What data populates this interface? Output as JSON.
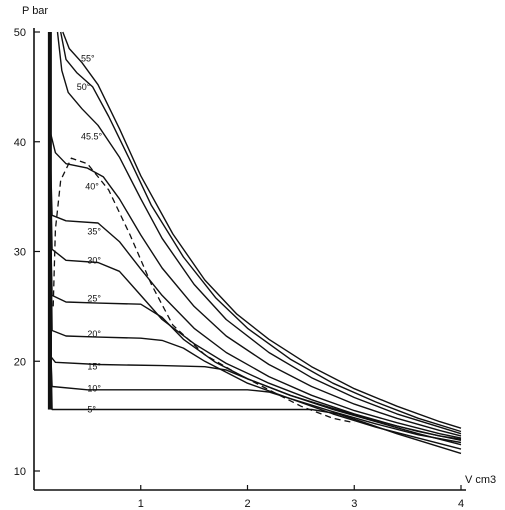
{
  "chart_data": {
    "type": "line",
    "xlabel": "V cm3",
    "ylabel": "P bar",
    "xlim": [
      0,
      4
    ],
    "ylim": [
      10,
      50
    ],
    "x_ticks": [
      "1",
      "2",
      "3",
      "4"
    ],
    "y_ticks": [
      "10",
      "20",
      "30",
      "40",
      "50"
    ],
    "series": [
      {
        "name": "5°",
        "label": "5°",
        "label_at": [
          0.5,
          15.6
        ],
        "points": [
          [
            0.14,
            50
          ],
          [
            0.15,
            40
          ],
          [
            0.16,
            30
          ],
          [
            0.16,
            20
          ],
          [
            0.17,
            15.6
          ],
          [
            0.5,
            15.6
          ],
          [
            1.2,
            15.6
          ],
          [
            2.0,
            15.6
          ],
          [
            2.6,
            15.6
          ],
          [
            2.85,
            15.2
          ],
          [
            3.1,
            14.4
          ],
          [
            3.4,
            13.4
          ],
          [
            3.7,
            12.5
          ],
          [
            4.0,
            11.6
          ]
        ]
      },
      {
        "name": "10°",
        "label": "10°",
        "label_at": [
          0.5,
          17.5
        ],
        "points": [
          [
            0.14,
            50
          ],
          [
            0.15,
            40
          ],
          [
            0.16,
            30
          ],
          [
            0.16,
            20
          ],
          [
            0.17,
            17.7
          ],
          [
            0.5,
            17.4
          ],
          [
            1.2,
            17.4
          ],
          [
            2.0,
            17.4
          ],
          [
            2.2,
            17.2
          ],
          [
            2.4,
            16.6
          ],
          [
            2.8,
            15.2
          ],
          [
            3.2,
            14.0
          ],
          [
            3.6,
            13.0
          ],
          [
            4.0,
            12.0
          ]
        ]
      },
      {
        "name": "15°",
        "label": "15°",
        "label_at": [
          0.5,
          19.5
        ],
        "points": [
          [
            0.14,
            50
          ],
          [
            0.15,
            40
          ],
          [
            0.16,
            30
          ],
          [
            0.16,
            20.4
          ],
          [
            0.2,
            19.9
          ],
          [
            0.6,
            19.7
          ],
          [
            1.2,
            19.6
          ],
          [
            1.6,
            19.5
          ],
          [
            1.8,
            19.2
          ],
          [
            2.0,
            18.4
          ],
          [
            2.4,
            16.9
          ],
          [
            2.8,
            15.6
          ],
          [
            3.2,
            14.5
          ],
          [
            3.6,
            13.4
          ],
          [
            4.0,
            12.4
          ]
        ]
      },
      {
        "name": "20°",
        "label": "20°",
        "label_at": [
          0.5,
          22.5
        ],
        "points": [
          [
            0.14,
            50
          ],
          [
            0.15,
            40
          ],
          [
            0.16,
            30
          ],
          [
            0.17,
            22.8
          ],
          [
            0.3,
            22.3
          ],
          [
            0.6,
            22.2
          ],
          [
            1.0,
            22.1
          ],
          [
            1.2,
            21.9
          ],
          [
            1.4,
            21.2
          ],
          [
            1.6,
            20.0
          ],
          [
            2.0,
            18.0
          ],
          [
            2.4,
            16.6
          ],
          [
            2.8,
            15.4
          ],
          [
            3.2,
            14.3
          ],
          [
            3.6,
            13.3
          ],
          [
            4.0,
            12.6
          ]
        ]
      },
      {
        "name": "25°",
        "label": "25°",
        "label_at": [
          0.5,
          25.7
        ],
        "points": [
          [
            0.14,
            50
          ],
          [
            0.15,
            40
          ],
          [
            0.16,
            30
          ],
          [
            0.17,
            26.0
          ],
          [
            0.3,
            25.4
          ],
          [
            0.6,
            25.3
          ],
          [
            1.0,
            25.2
          ],
          [
            1.2,
            24.0
          ],
          [
            1.4,
            22.0
          ],
          [
            1.7,
            19.9
          ],
          [
            2.0,
            18.4
          ],
          [
            2.4,
            16.9
          ],
          [
            2.8,
            15.7
          ],
          [
            3.2,
            14.6
          ],
          [
            3.6,
            13.6
          ],
          [
            4.0,
            12.8
          ]
        ]
      },
      {
        "name": "30°",
        "label": "30°",
        "label_at": [
          0.5,
          29.2
        ],
        "points": [
          [
            0.14,
            50
          ],
          [
            0.15,
            40
          ],
          [
            0.17,
            30.2
          ],
          [
            0.3,
            29.2
          ],
          [
            0.6,
            29.0
          ],
          [
            0.8,
            28.2
          ],
          [
            1.0,
            26.0
          ],
          [
            1.2,
            23.8
          ],
          [
            1.5,
            21.6
          ],
          [
            1.8,
            19.8
          ],
          [
            2.2,
            18.0
          ],
          [
            2.6,
            16.5
          ],
          [
            3.0,
            15.2
          ],
          [
            3.4,
            14.1
          ],
          [
            3.8,
            13.2
          ],
          [
            4.0,
            12.9
          ]
        ]
      },
      {
        "name": "35°",
        "label": "35°",
        "label_at": [
          0.5,
          31.8
        ],
        "points": [
          [
            0.14,
            50
          ],
          [
            0.15,
            40
          ],
          [
            0.17,
            33.3
          ],
          [
            0.3,
            32.8
          ],
          [
            0.6,
            32.6
          ],
          [
            0.8,
            30.9
          ],
          [
            1.0,
            28.4
          ],
          [
            1.2,
            26.0
          ],
          [
            1.5,
            23.0
          ],
          [
            1.8,
            20.8
          ],
          [
            2.2,
            18.6
          ],
          [
            2.6,
            16.9
          ],
          [
            3.0,
            15.5
          ],
          [
            3.4,
            14.4
          ],
          [
            3.8,
            13.4
          ],
          [
            4.0,
            13.0
          ]
        ]
      },
      {
        "name": "40°",
        "label": "40°",
        "label_at": [
          0.48,
          35.9
        ],
        "points": [
          [
            0.14,
            50
          ],
          [
            0.15,
            41
          ],
          [
            0.2,
            39.0
          ],
          [
            0.3,
            38.0
          ],
          [
            0.5,
            37.6
          ],
          [
            0.65,
            36.8
          ],
          [
            0.8,
            34.8
          ],
          [
            1.0,
            31.5
          ],
          [
            1.2,
            28.5
          ],
          [
            1.5,
            25.0
          ],
          [
            1.8,
            22.3
          ],
          [
            2.2,
            19.7
          ],
          [
            2.6,
            17.7
          ],
          [
            3.0,
            16.1
          ],
          [
            3.4,
            14.8
          ],
          [
            3.8,
            13.7
          ],
          [
            4.0,
            13.2
          ]
        ]
      },
      {
        "name": "45.5°",
        "label": "45.5°",
        "label_at": [
          0.44,
          40.5
        ],
        "points": [
          [
            0.22,
            50
          ],
          [
            0.26,
            46.5
          ],
          [
            0.32,
            44.5
          ],
          [
            0.45,
            43.0
          ],
          [
            0.6,
            41.5
          ],
          [
            0.8,
            38.6
          ],
          [
            1.0,
            34.8
          ],
          [
            1.2,
            31.2
          ],
          [
            1.5,
            27.0
          ],
          [
            1.8,
            23.8
          ],
          [
            2.2,
            20.8
          ],
          [
            2.6,
            18.5
          ],
          [
            3.0,
            16.7
          ],
          [
            3.4,
            15.2
          ],
          [
            3.8,
            14.0
          ],
          [
            4.0,
            13.4
          ]
        ]
      },
      {
        "name": "50°",
        "label": "50°",
        "label_at": [
          0.4,
          45.0
        ],
        "points": [
          [
            0.25,
            50
          ],
          [
            0.3,
            47.5
          ],
          [
            0.4,
            46.3
          ],
          [
            0.55,
            45.0
          ],
          [
            0.7,
            42.3
          ],
          [
            0.9,
            38.3
          ],
          [
            1.1,
            34.2
          ],
          [
            1.4,
            29.5
          ],
          [
            1.7,
            25.8
          ],
          [
            2.0,
            23.0
          ],
          [
            2.4,
            20.2
          ],
          [
            2.8,
            18.0
          ],
          [
            3.2,
            16.3
          ],
          [
            3.6,
            14.8
          ],
          [
            4.0,
            13.6
          ]
        ]
      },
      {
        "name": "55°",
        "label": "55°",
        "label_at": [
          0.44,
          47.6
        ],
        "points": [
          [
            0.27,
            50
          ],
          [
            0.33,
            48.5
          ],
          [
            0.45,
            47.2
          ],
          [
            0.6,
            45.2
          ],
          [
            0.8,
            41.2
          ],
          [
            1.0,
            36.9
          ],
          [
            1.3,
            31.6
          ],
          [
            1.6,
            27.4
          ],
          [
            1.9,
            24.3
          ],
          [
            2.2,
            22.0
          ],
          [
            2.6,
            19.5
          ],
          [
            3.0,
            17.5
          ],
          [
            3.4,
            15.9
          ],
          [
            3.8,
            14.5
          ],
          [
            4.0,
            13.9
          ]
        ]
      }
    ],
    "saturation_curve": {
      "style": "dashed",
      "points": [
        [
          0.18,
          25.0
        ],
        [
          0.2,
          32.0
        ],
        [
          0.25,
          36.5
        ],
        [
          0.35,
          38.5
        ],
        [
          0.5,
          38.0
        ],
        [
          0.7,
          35.6
        ],
        [
          0.9,
          31.5
        ],
        [
          1.1,
          27.0
        ],
        [
          1.3,
          23.3
        ],
        [
          1.6,
          20.6
        ],
        [
          1.9,
          18.9
        ],
        [
          2.2,
          17.4
        ],
        [
          2.5,
          15.9
        ],
        [
          2.8,
          14.8
        ],
        [
          3.0,
          14.4
        ]
      ]
    }
  }
}
